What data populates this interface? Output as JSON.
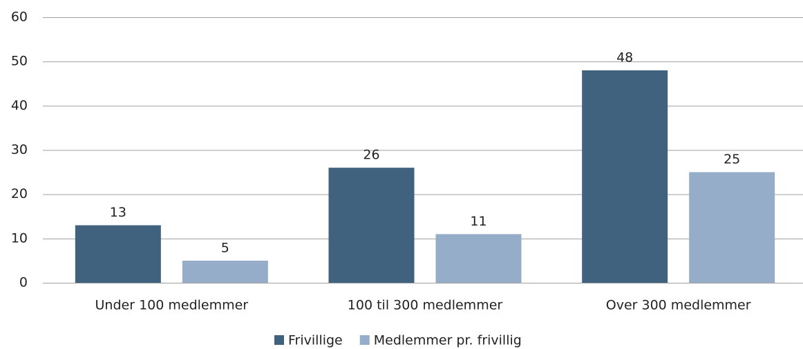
{
  "chart_data": {
    "type": "bar",
    "categories": [
      "Under 100 medlemmer",
      "100 til 300 medlemmer",
      "Over 300 medlemmer"
    ],
    "series": [
      {
        "name": "Frivillige",
        "color": "#41627f",
        "values": [
          13,
          26,
          48
        ]
      },
      {
        "name": "Medlemmer pr. frivillig",
        "color": "#95adc9",
        "values": [
          5,
          11,
          25
        ]
      }
    ],
    "ylim": [
      0,
      60
    ],
    "yticks": [
      0,
      10,
      20,
      30,
      40,
      50,
      60
    ],
    "grid": true,
    "legend": "bottom"
  }
}
